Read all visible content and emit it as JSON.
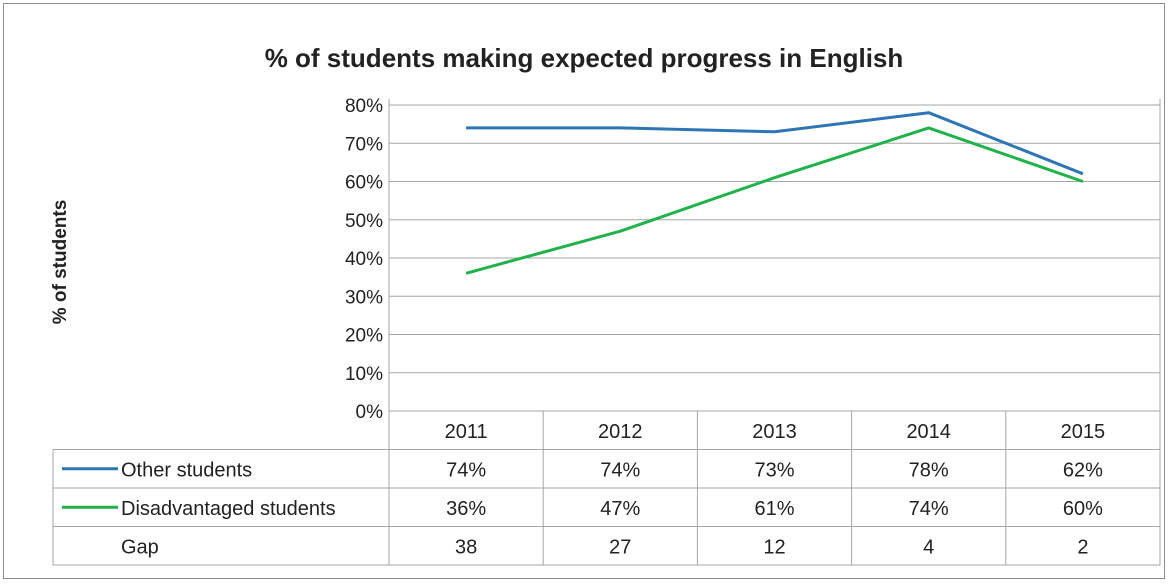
{
  "chart_data": {
    "type": "line",
    "title": "% of students making expected progress in English",
    "ylabel": "% of students",
    "ylim": [
      0,
      80
    ],
    "y_ticks": [
      "0%",
      "10%",
      "20%",
      "30%",
      "40%",
      "50%",
      "60%",
      "70%",
      "80%"
    ],
    "categories": [
      "2011",
      "2012",
      "2013",
      "2014",
      "2015"
    ],
    "series": [
      {
        "name": "Other students",
        "color": "#2e75b6",
        "values": [
          74,
          74,
          73,
          78,
          62
        ],
        "labels": [
          "74%",
          "74%",
          "73%",
          "78%",
          "62%"
        ]
      },
      {
        "name": "Disadvantaged students",
        "color": "#22b24c",
        "values": [
          36,
          47,
          61,
          74,
          60
        ],
        "labels": [
          "36%",
          "47%",
          "61%",
          "74%",
          "60%"
        ]
      }
    ],
    "table_extra_rows": [
      {
        "label": "Gap",
        "values": [
          "38",
          "27",
          "12",
          "4",
          "2"
        ]
      }
    ],
    "grid": true,
    "legend": "data-table"
  }
}
